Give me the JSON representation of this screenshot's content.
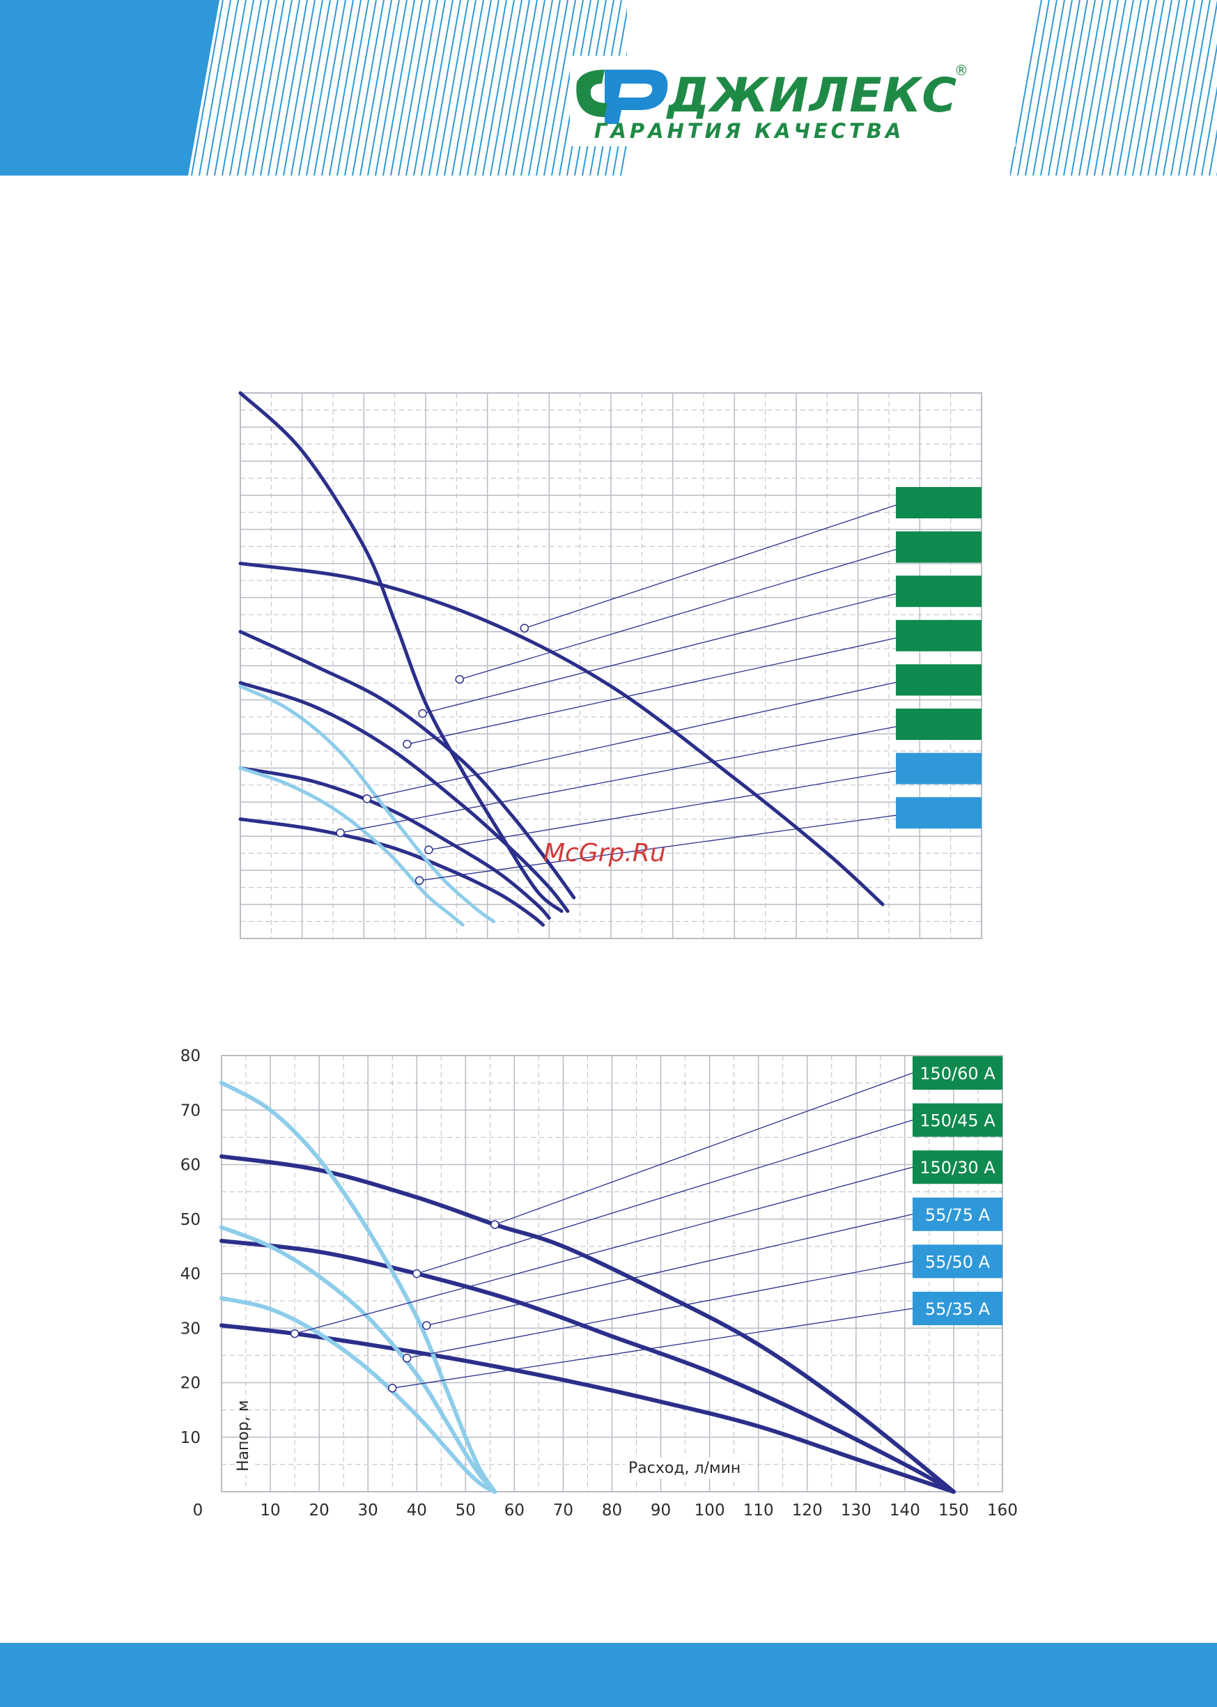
{
  "brand": {
    "name": "ДЖИЛЕКС",
    "registered": "®",
    "tagline": "ГАРАНТИЯ КАЧЕСТВА"
  },
  "watermark": "McGrp.Ru",
  "colors": {
    "accent_blue": "#2f98d8",
    "brand_green": "#0e8a4e",
    "curve_dark": "#2b2f8a",
    "curve_light": "#8ecdea",
    "grid": "#b9bcc4"
  },
  "chart_data": [
    {
      "id": "top",
      "type": "line",
      "title": "",
      "xlabel": "",
      "ylabel": "",
      "xlim": [
        0,
        120
      ],
      "ylim": [
        0,
        16
      ],
      "grid": true,
      "models": [
        {
          "color": "#0e8a4e",
          "text": ""
        },
        {
          "color": "#0e8a4e",
          "text": ""
        },
        {
          "color": "#0e8a4e",
          "text": ""
        },
        {
          "color": "#0e8a4e",
          "text": ""
        },
        {
          "color": "#0e8a4e",
          "text": ""
        },
        {
          "color": "#0e8a4e",
          "text": ""
        },
        {
          "color": "#2f98d8",
          "text": ""
        },
        {
          "color": "#2f98d8",
          "text": ""
        }
      ],
      "series": [
        {
          "color": "dark",
          "x": [
            0,
            10,
            20,
            25,
            30,
            36,
            42,
            48,
            52
          ],
          "y": [
            16,
            14.3,
            11.5,
            9.3,
            6.9,
            4.9,
            3.1,
            1.4,
            0.8
          ]
        },
        {
          "color": "dark",
          "x": [
            0,
            20,
            40,
            60,
            80,
            95,
            104
          ],
          "y": [
            11,
            10.5,
            9.3,
            7.4,
            4.7,
            2.5,
            1.0
          ]
        },
        {
          "color": "dark",
          "x": [
            0,
            12,
            24,
            36,
            44,
            50,
            54
          ],
          "y": [
            9.0,
            8.0,
            6.9,
            5.2,
            3.6,
            2.2,
            1.2
          ]
        },
        {
          "color": "dark",
          "x": [
            0,
            12,
            24,
            36,
            44,
            50,
            53
          ],
          "y": [
            7.5,
            6.8,
            5.6,
            3.9,
            2.6,
            1.5,
            0.8
          ]
        },
        {
          "color": "dark",
          "x": [
            0,
            12,
            24,
            34,
            42,
            48,
            50
          ],
          "y": [
            5.0,
            4.6,
            3.8,
            2.8,
            1.9,
            1.0,
            0.6
          ]
        },
        {
          "color": "dark",
          "x": [
            0,
            12,
            24,
            34,
            42,
            47,
            49
          ],
          "y": [
            3.5,
            3.2,
            2.7,
            2.0,
            1.3,
            0.7,
            0.4
          ]
        },
        {
          "color": "light",
          "x": [
            0,
            8,
            16,
            24,
            32,
            38,
            41
          ],
          "y": [
            7.4,
            6.7,
            5.5,
            3.7,
            1.9,
            0.9,
            0.5
          ]
        },
        {
          "color": "light",
          "x": [
            0,
            8,
            16,
            24,
            30,
            34,
            36
          ],
          "y": [
            5.0,
            4.5,
            3.7,
            2.5,
            1.3,
            0.7,
            0.4
          ]
        }
      ],
      "markers": [
        {
          "x": 46,
          "y": 9.1
        },
        {
          "x": 35.5,
          "y": 7.6
        },
        {
          "x": 29.5,
          "y": 6.6
        },
        {
          "x": 27,
          "y": 5.7
        },
        {
          "x": 20.5,
          "y": 4.1
        },
        {
          "x": 16.2,
          "y": 3.1
        },
        {
          "x": 30.5,
          "y": 2.6
        },
        {
          "x": 29,
          "y": 1.7
        }
      ]
    },
    {
      "id": "bottom",
      "type": "line",
      "title": "",
      "xlabel": "Расход, л/мин",
      "ylabel": "Напор, м",
      "xlim": [
        0,
        160
      ],
      "ylim": [
        0,
        80
      ],
      "x_ticks": [
        "10",
        "20",
        "30",
        "40",
        "50",
        "60",
        "70",
        "80",
        "90",
        "100",
        "110",
        "120",
        "130",
        "140",
        "150",
        "160"
      ],
      "y_ticks": [
        "10",
        "20",
        "30",
        "40",
        "50",
        "60",
        "70",
        "80"
      ],
      "origin_label": "0",
      "grid": true,
      "models": [
        {
          "color": "#0e8a4e",
          "text": "150/60 А"
        },
        {
          "color": "#0e8a4e",
          "text": "150/45 А"
        },
        {
          "color": "#0e8a4e",
          "text": "150/30 А"
        },
        {
          "color": "#2f98d8",
          "text": "55/75 А"
        },
        {
          "color": "#2f98d8",
          "text": "55/50 А"
        },
        {
          "color": "#2f98d8",
          "text": "55/35 А"
        }
      ],
      "series": [
        {
          "name": "150/60 А",
          "color": "dark",
          "x": [
            0,
            20,
            40,
            56,
            70,
            90,
            110,
            130,
            150
          ],
          "y": [
            61.5,
            59,
            54,
            49,
            45,
            36.5,
            27,
            14.5,
            0
          ]
        },
        {
          "name": "150/45 А",
          "color": "dark",
          "x": [
            0,
            20,
            40,
            60,
            80,
            100,
            120,
            140,
            150
          ],
          "y": [
            46,
            44,
            40,
            35,
            28.5,
            22,
            14,
            5,
            0
          ]
        },
        {
          "name": "150/30 А",
          "color": "dark",
          "x": [
            0,
            15,
            30,
            50,
            70,
            90,
            110,
            130,
            150
          ],
          "y": [
            30.5,
            29,
            27,
            24,
            20.5,
            16.5,
            12,
            6,
            0
          ]
        },
        {
          "name": "55/75 А",
          "color": "light",
          "x": [
            0,
            10,
            20,
            30,
            40,
            46,
            50,
            53,
            56
          ],
          "y": [
            75,
            70,
            61,
            48,
            32,
            19,
            10,
            4,
            0
          ]
        },
        {
          "name": "55/50 А",
          "color": "light",
          "x": [
            0,
            10,
            20,
            30,
            40,
            46,
            50,
            53,
            56
          ],
          "y": [
            48.5,
            45,
            39.5,
            32,
            21.5,
            13,
            7,
            3,
            0
          ]
        },
        {
          "name": "55/35 А",
          "color": "light",
          "x": [
            0,
            10,
            20,
            30,
            40,
            46,
            50,
            53,
            56
          ],
          "y": [
            35.5,
            33.5,
            29,
            22.5,
            14,
            8,
            4,
            1.5,
            0
          ]
        }
      ],
      "markers": [
        {
          "x": 56,
          "y": 49
        },
        {
          "x": 40,
          "y": 40
        },
        {
          "x": 15,
          "y": 29
        },
        {
          "x": 42,
          "y": 30.5
        },
        {
          "x": 38,
          "y": 24.5
        },
        {
          "x": 35,
          "y": 19
        }
      ]
    }
  ]
}
